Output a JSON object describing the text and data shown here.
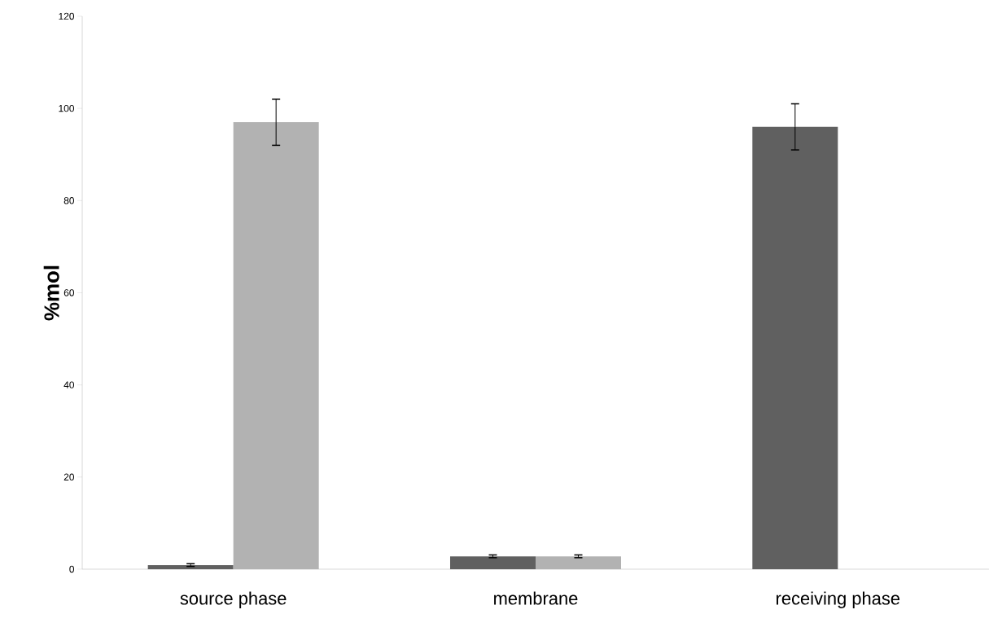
{
  "chart_data": {
    "type": "bar",
    "ylabel": "%mol",
    "categories": [
      "source phase",
      "membrane",
      "receiving phase"
    ],
    "series": [
      {
        "color": "#606060",
        "values": [
          0.9,
          2.8,
          96
        ],
        "errors": [
          0.3,
          0.3,
          5
        ]
      },
      {
        "color": "#b2b2b2",
        "values": [
          97,
          2.8,
          null
        ],
        "errors": [
          5,
          0.3,
          null
        ]
      }
    ],
    "ylim": [
      0,
      120
    ],
    "yticks": [
      0,
      20,
      40,
      60,
      80,
      100,
      120
    ],
    "grid": false
  }
}
